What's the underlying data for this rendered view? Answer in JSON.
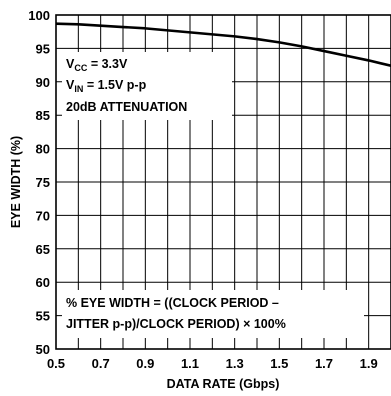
{
  "chart_data": {
    "type": "line",
    "xlabel": "DATA RATE (Gbps)",
    "ylabel": "EYE WIDTH (%)",
    "xlim": [
      0.5,
      2.0
    ],
    "ylim": [
      50,
      100
    ],
    "x_tick_labels": [
      "0.5",
      "0.7",
      "0.9",
      "1.1",
      "1.3",
      "1.5",
      "1.7",
      "1.9"
    ],
    "x_minor_step": 0.1,
    "y_tick_labels": [
      "50",
      "55",
      "60",
      "65",
      "70",
      "75",
      "80",
      "85",
      "90",
      "95",
      "100"
    ],
    "grid": true,
    "series": [
      {
        "x": [
          0.5,
          0.6,
          0.7,
          0.8,
          0.9,
          1.0,
          1.1,
          1.2,
          1.3,
          1.4,
          1.5,
          1.6,
          1.7,
          1.8,
          1.9,
          2.0
        ],
        "y": [
          98.7,
          98.6,
          98.4,
          98.2,
          98.0,
          97.7,
          97.4,
          97.1,
          96.8,
          96.4,
          95.9,
          95.3,
          94.6,
          93.9,
          93.2,
          92.4
        ]
      }
    ],
    "conditions": {
      "vcc_main": "V",
      "vcc_sub": "CC",
      "vcc_value": " = 3.3V",
      "vin_main": "V",
      "vin_sub": "IN",
      "vin_value": " = 1.5V p-p",
      "attenuation": "20dB ATTENUATION"
    },
    "formula": {
      "line1": "% EYE WIDTH = ((CLOCK PERIOD –",
      "line2": "JITTER p-p)/CLOCK PERIOD) × 100%"
    },
    "colors": {
      "line": "#000000",
      "grid": "#000000",
      "background": "#ffffff"
    }
  }
}
